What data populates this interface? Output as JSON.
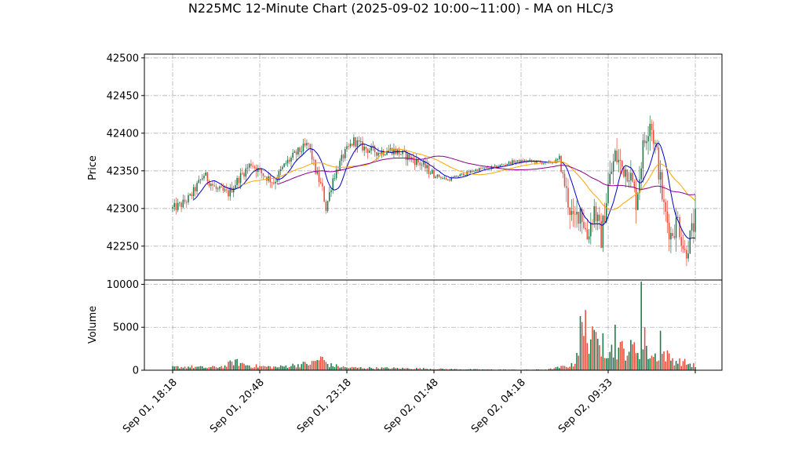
{
  "chart_data": {
    "type": "candlestick",
    "title": "N225MC 12-Minute Chart (2025-09-02 10:00~11:00) - MA on HLC/3",
    "grid": true,
    "colors": {
      "up": "#1a7a4a",
      "down": "#e74c3c",
      "ma_short": "#0000cc",
      "ma_mid": "#ffa500",
      "ma_long": "#8b008b",
      "frame": "#000000",
      "grid": "#b0b0b0"
    },
    "price_panel": {
      "ylabel": "Price",
      "ylim": [
        42205,
        42505
      ],
      "yticks": [
        42250,
        42300,
        42350,
        42400,
        42450,
        42500
      ],
      "ytick_labels": [
        "42250",
        "42300",
        "42350",
        "42400",
        "42450",
        "42500"
      ]
    },
    "volume_panel": {
      "ylabel": "Volume",
      "ylim": [
        0,
        10500
      ],
      "yticks": [
        0,
        5000,
        10000
      ],
      "ytick_labels": [
        "0",
        "5000",
        "10000"
      ]
    },
    "xaxis": {
      "tick_labels": [
        "Sep 01, 18:18",
        "Sep 01, 20:48",
        "Sep 01, 23:18",
        "Sep 02, 01:48",
        "Sep 02, 04:18",
        "Sep 02, 09:33"
      ],
      "tick_index": [
        0,
        50,
        100,
        150,
        200,
        250
      ],
      "n_bars": 301
    },
    "price_path": [
      [
        0,
        42300
      ],
      [
        5,
        42305
      ],
      [
        10,
        42315
      ],
      [
        18,
        42345
      ],
      [
        25,
        42325
      ],
      [
        32,
        42320
      ],
      [
        38,
        42340
      ],
      [
        45,
        42360
      ],
      [
        52,
        42345
      ],
      [
        58,
        42335
      ],
      [
        65,
        42360
      ],
      [
        72,
        42375
      ],
      [
        78,
        42385
      ],
      [
        82,
        42350
      ],
      [
        86,
        42325
      ],
      [
        88,
        42300
      ],
      [
        92,
        42340
      ],
      [
        98,
        42370
      ],
      [
        104,
        42390
      ],
      [
        110,
        42380
      ],
      [
        118,
        42375
      ],
      [
        126,
        42378
      ],
      [
        134,
        42370
      ],
      [
        142,
        42360
      ],
      [
        150,
        42345
      ],
      [
        158,
        42338
      ],
      [
        166,
        42345
      ],
      [
        175,
        42352
      ],
      [
        185,
        42355
      ],
      [
        195,
        42362
      ],
      [
        205,
        42363
      ],
      [
        215,
        42360
      ],
      [
        222,
        42365
      ],
      [
        226,
        42320
      ],
      [
        230,
        42280
      ],
      [
        234,
        42300
      ],
      [
        238,
        42262
      ],
      [
        242,
        42300
      ],
      [
        246,
        42260
      ],
      [
        250,
        42330
      ],
      [
        254,
        42370
      ],
      [
        258,
        42355
      ],
      [
        262,
        42350
      ],
      [
        266,
        42310
      ],
      [
        270,
        42380
      ],
      [
        274,
        42420
      ],
      [
        278,
        42370
      ],
      [
        282,
        42300
      ],
      [
        286,
        42265
      ],
      [
        290,
        42285
      ],
      [
        294,
        42240
      ],
      [
        297,
        42260
      ],
      [
        300,
        42285
      ]
    ],
    "volume_profile": [
      [
        0,
        350
      ],
      [
        10,
        400
      ],
      [
        20,
        300
      ],
      [
        30,
        450
      ],
      [
        35,
        1000
      ],
      [
        45,
        500
      ],
      [
        60,
        350
      ],
      [
        70,
        600
      ],
      [
        80,
        800
      ],
      [
        85,
        1400
      ],
      [
        90,
        600
      ],
      [
        100,
        300
      ],
      [
        120,
        250
      ],
      [
        140,
        200
      ],
      [
        160,
        120
      ],
      [
        180,
        80
      ],
      [
        200,
        50
      ],
      [
        215,
        80
      ],
      [
        230,
        600
      ],
      [
        235,
        4000
      ],
      [
        240,
        3500
      ],
      [
        245,
        2800
      ],
      [
        250,
        2300
      ],
      [
        255,
        2400
      ],
      [
        260,
        2200
      ],
      [
        265,
        2600
      ],
      [
        270,
        2200
      ],
      [
        276,
        1600
      ],
      [
        282,
        1900
      ],
      [
        288,
        1100
      ],
      [
        294,
        900
      ],
      [
        300,
        500
      ]
    ],
    "volume_spikes": [
      [
        234,
        6300
      ],
      [
        237,
        7000
      ],
      [
        241,
        5100
      ],
      [
        247,
        4300
      ],
      [
        254,
        5300
      ],
      [
        258,
        3400
      ],
      [
        269,
        10300
      ],
      [
        271,
        5000
      ],
      [
        280,
        4600
      ]
    ],
    "moving_averages": [
      {
        "key": "ma_short",
        "window": 10,
        "start": 12
      },
      {
        "key": "ma_mid",
        "window": 30,
        "start": 40
      },
      {
        "key": "ma_long",
        "window": 60,
        "start": 60
      }
    ]
  }
}
